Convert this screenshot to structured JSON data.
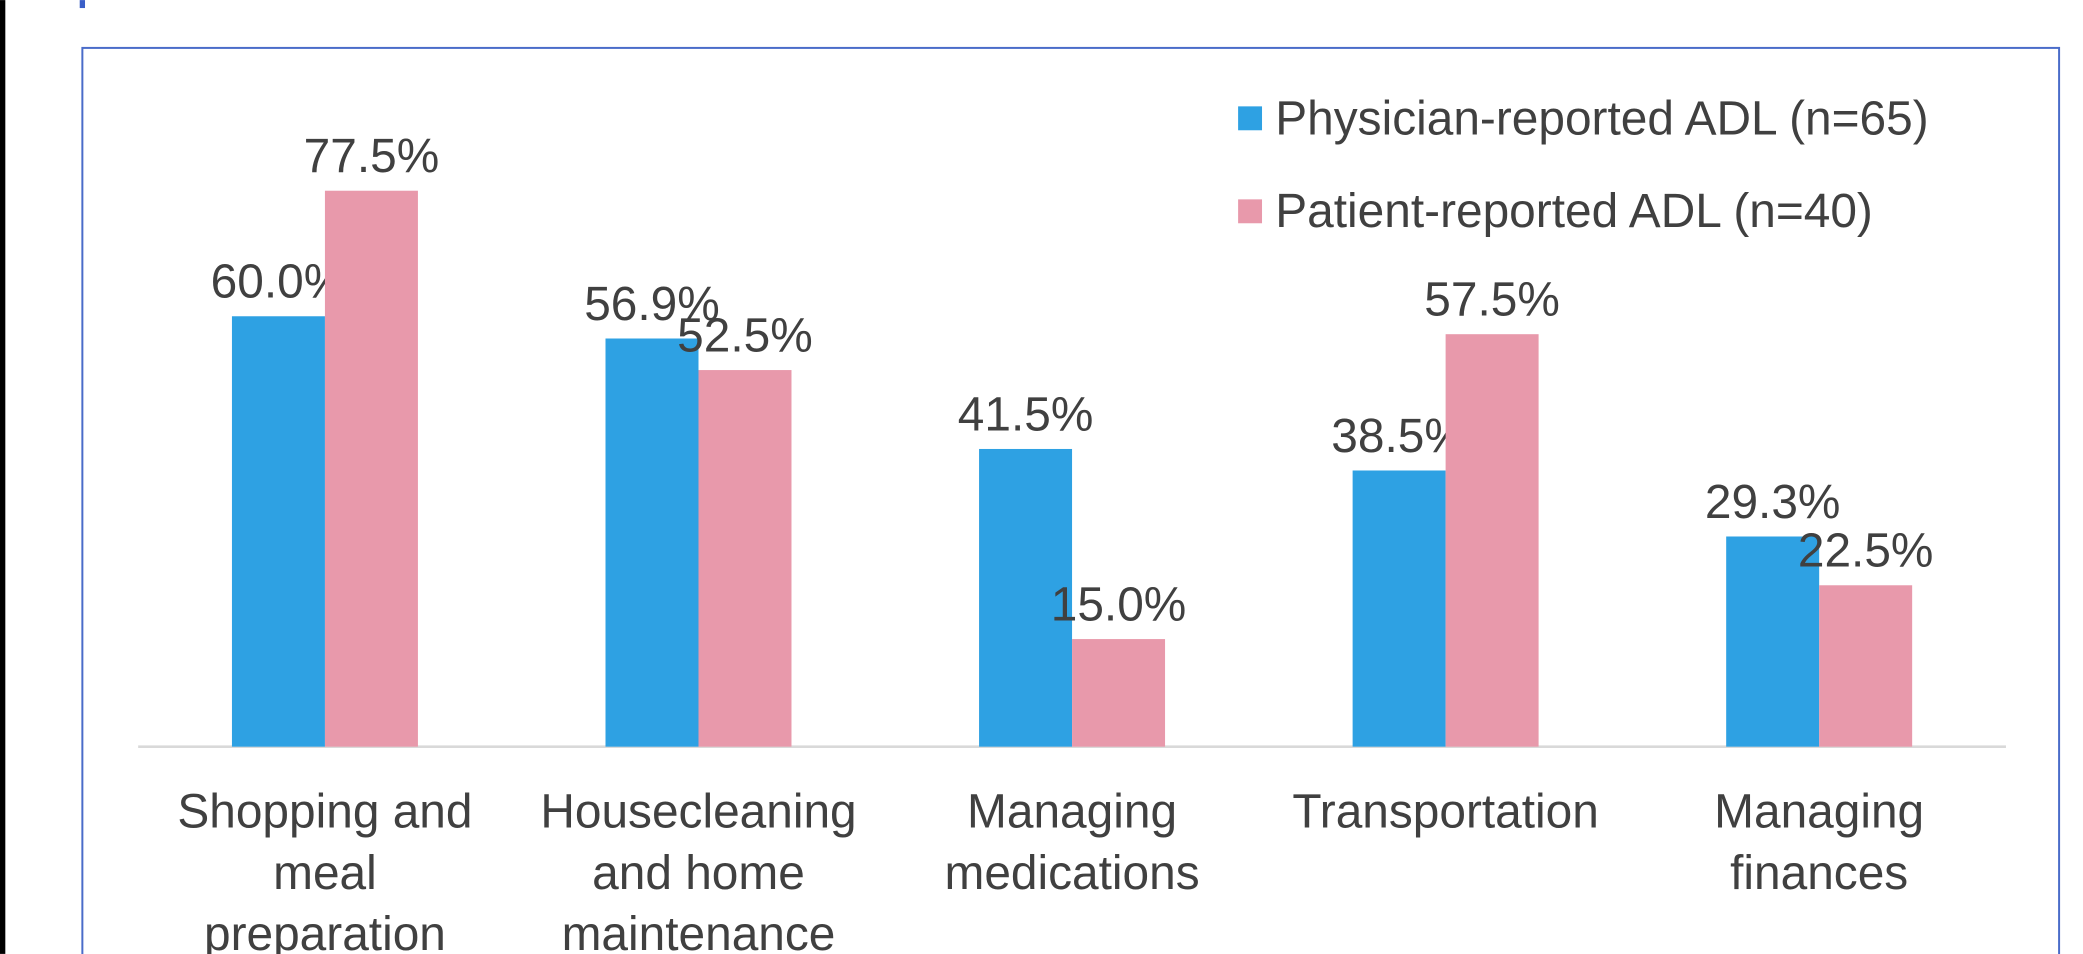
{
  "chart_data": {
    "type": "bar",
    "categories": [
      "Shopping and meal preparation",
      "Housecleaning and home maintenance",
      "Managing medications",
      "Transportation",
      "Managing finances"
    ],
    "series": [
      {
        "name": "Physician-reported ADL (n=65)",
        "color": "#2ea1e3",
        "values": [
          60.0,
          56.9,
          41.5,
          38.5,
          29.3
        ],
        "value_labels": [
          "60.0%",
          "56.9%",
          "41.5%",
          "38.5%",
          "29.3%"
        ]
      },
      {
        "name": "Patient-reported ADL (n=40)",
        "color": "#e899ab",
        "values": [
          77.5,
          52.5,
          15.0,
          57.5,
          22.5
        ],
        "value_labels": [
          "77.5%",
          "52.5%",
          "15.0%",
          "57.5%",
          "22.5%"
        ]
      }
    ],
    "ylim": [
      0,
      100
    ],
    "legend": "top-right"
  }
}
